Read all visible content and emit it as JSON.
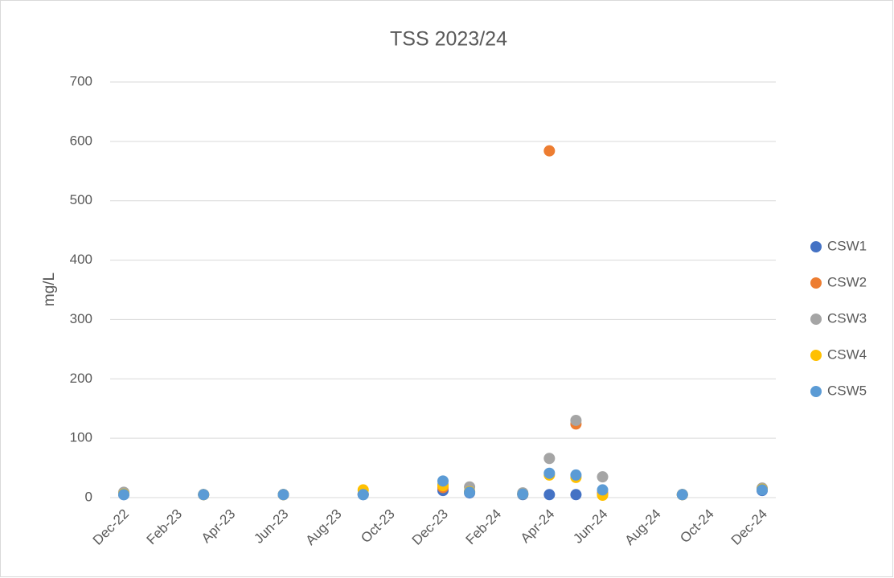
{
  "chart_data": {
    "type": "scatter",
    "title": "TSS 2023/24",
    "y_label": "mg/L",
    "x": [
      "2022-12",
      "2023-03",
      "2023-06",
      "2023-09",
      "2023-12",
      "2024-01",
      "2024-03",
      "2024-04",
      "2024-05",
      "2024-06",
      "2024-09",
      "2024-12"
    ],
    "series": [
      {
        "name": "CSW1",
        "color": "#4472c4",
        "values": [
          5,
          5,
          5,
          5,
          12,
          8,
          5,
          5,
          5,
          5,
          5,
          12
        ]
      },
      {
        "name": "CSW2",
        "color": "#ed7d31",
        "values": [
          6,
          5,
          5,
          6,
          17,
          10,
          6,
          584,
          124,
          8,
          5,
          14
        ]
      },
      {
        "name": "CSW3",
        "color": "#a5a5a5",
        "values": [
          9,
          5,
          5,
          6,
          22,
          18,
          8,
          66,
          130,
          35,
          5,
          16
        ]
      },
      {
        "name": "CSW4",
        "color": "#ffc000",
        "values": [
          6,
          5,
          5,
          13,
          20,
          10,
          6,
          38,
          34,
          4,
          5,
          14
        ]
      },
      {
        "name": "CSW5",
        "color": "#5b9bd5",
        "values": [
          5,
          5,
          5,
          5,
          28,
          9,
          6,
          41,
          38,
          13,
          5,
          13
        ]
      }
    ],
    "xlim": [
      "2022-12",
      "2024-12"
    ],
    "xticks": [
      {
        "value": "2022-12",
        "label": "Dec-22"
      },
      {
        "value": "2023-02",
        "label": "Feb-23"
      },
      {
        "value": "2023-04",
        "label": "Apr-23"
      },
      {
        "value": "2023-06",
        "label": "Jun-23"
      },
      {
        "value": "2023-08",
        "label": "Aug-23"
      },
      {
        "value": "2023-10",
        "label": "Oct-23"
      },
      {
        "value": "2023-12",
        "label": "Dec-23"
      },
      {
        "value": "2024-02",
        "label": "Feb-24"
      },
      {
        "value": "2024-04",
        "label": "Apr-24"
      },
      {
        "value": "2024-06",
        "label": "Jun-24"
      },
      {
        "value": "2024-08",
        "label": "Aug-24"
      },
      {
        "value": "2024-10",
        "label": "Oct-24"
      },
      {
        "value": "2024-12",
        "label": "Dec-24"
      }
    ],
    "ylim": [
      0,
      700
    ],
    "yticks": [
      0,
      100,
      200,
      300,
      400,
      500,
      600,
      700
    ],
    "grid": true,
    "legend": "right"
  }
}
